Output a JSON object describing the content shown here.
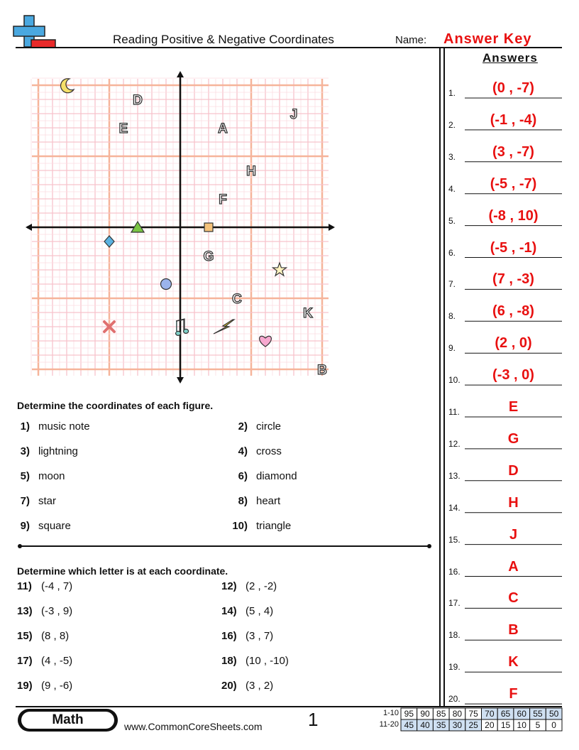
{
  "header": {
    "title": "Reading Positive & Negative Coordinates",
    "name_label": "Name:",
    "answer_key": "Answer Key"
  },
  "graph": {
    "xlim": [
      -10,
      10
    ],
    "ylim": [
      -10,
      10
    ],
    "figures": [
      {
        "x": 0,
        "y": -7
      },
      {
        "x": -1,
        "y": -4
      },
      {
        "x": 3,
        "y": -7
      },
      {
        "x": -5,
        "y": -7
      },
      {
        "x": -8,
        "y": 10
      },
      {
        "x": -5,
        "y": -1
      },
      {
        "x": 7,
        "y": -3
      },
      {
        "x": 6,
        "y": -8
      },
      {
        "x": 2,
        "y": 0
      },
      {
        "x": -3,
        "y": 0
      }
    ],
    "letters": [
      {
        "label": "E",
        "x": -4,
        "y": 7
      },
      {
        "label": "G",
        "x": 2,
        "y": -2
      },
      {
        "label": "D",
        "x": -3,
        "y": 9
      },
      {
        "label": "H",
        "x": 5,
        "y": 4
      },
      {
        "label": "J",
        "x": 8,
        "y": 8
      },
      {
        "label": "A",
        "x": 3,
        "y": 7
      },
      {
        "label": "C",
        "x": 4,
        "y": -5
      },
      {
        "label": "B",
        "x": 10,
        "y": -10
      },
      {
        "label": "K",
        "x": 9,
        "y": -6
      },
      {
        "label": "F",
        "x": 3,
        "y": 2
      }
    ]
  },
  "section1": {
    "instruction": "Determine the coordinates of each figure.",
    "questions": [
      {
        "number": "1)",
        "text": "music note"
      },
      {
        "number": "2)",
        "text": "circle"
      },
      {
        "number": "3)",
        "text": "lightning"
      },
      {
        "number": "4)",
        "text": "cross"
      },
      {
        "number": "5)",
        "text": "moon"
      },
      {
        "number": "6)",
        "text": "diamond"
      },
      {
        "number": "7)",
        "text": "star"
      },
      {
        "number": "8)",
        "text": "heart"
      },
      {
        "number": "9)",
        "text": "square"
      },
      {
        "number": "10)",
        "text": "triangle"
      }
    ]
  },
  "section2": {
    "instruction": "Determine which letter is at each coordinate.",
    "questions": [
      {
        "number": "11)",
        "text": "(-4 , 7)"
      },
      {
        "number": "12)",
        "text": "(2 , -2)"
      },
      {
        "number": "13)",
        "text": "(-3 , 9)"
      },
      {
        "number": "14)",
        "text": "(5 , 4)"
      },
      {
        "number": "15)",
        "text": "(8 , 8)"
      },
      {
        "number": "16)",
        "text": "(3 , 7)"
      },
      {
        "number": "17)",
        "text": "(4 , -5)"
      },
      {
        "number": "18)",
        "text": "(10 , -10)"
      },
      {
        "number": "19)",
        "text": "(9 , -6)"
      },
      {
        "number": "20)",
        "text": "(3 , 2)"
      }
    ]
  },
  "answers": {
    "title": "Answers",
    "items": [
      {
        "number": "1.",
        "answer": "(0 , -7)"
      },
      {
        "number": "2.",
        "answer": "(-1 , -4)"
      },
      {
        "number": "3.",
        "answer": "(3 , -7)"
      },
      {
        "number": "4.",
        "answer": "(-5 , -7)"
      },
      {
        "number": "5.",
        "answer": "(-8 , 10)"
      },
      {
        "number": "6.",
        "answer": "(-5 , -1)"
      },
      {
        "number": "7.",
        "answer": "(7 , -3)"
      },
      {
        "number": "8.",
        "answer": "(6 , -8)"
      },
      {
        "number": "9.",
        "answer": "(2 , 0)"
      },
      {
        "number": "10.",
        "answer": "(-3 , 0)"
      },
      {
        "number": "11.",
        "answer": "E"
      },
      {
        "number": "12.",
        "answer": "G"
      },
      {
        "number": "13.",
        "answer": "D"
      },
      {
        "number": "14.",
        "answer": "H"
      },
      {
        "number": "15.",
        "answer": "J"
      },
      {
        "number": "16.",
        "answer": "A"
      },
      {
        "number": "17.",
        "answer": "C"
      },
      {
        "number": "18.",
        "answer": "B"
      },
      {
        "number": "19.",
        "answer": "K"
      },
      {
        "number": "20.",
        "answer": "F"
      }
    ]
  },
  "footer": {
    "subject": "Math",
    "website": "www.CommonCoreSheets.com",
    "page": "1",
    "score_table": [
      {
        "label": "1-10",
        "scores": [
          "95",
          "90",
          "85",
          "80",
          "75",
          "70",
          "65",
          "60",
          "55",
          "50"
        ]
      },
      {
        "label": "11-20",
        "scores": [
          "45",
          "40",
          "35",
          "30",
          "25",
          "20",
          "15",
          "10",
          "5",
          "0"
        ]
      }
    ]
  }
}
